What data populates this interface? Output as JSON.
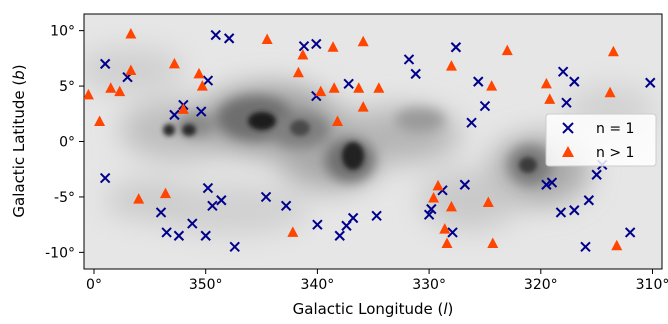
{
  "chart_data": {
    "type": "scatter",
    "xlabel": "Galactic Longitude (",
    "xlabel_italic": "l",
    "xlabel_close": ")",
    "ylabel": "Galactic Latitude (",
    "ylabel_italic": "b",
    "ylabel_close": ")",
    "xlim": [
      2,
      -311
    ],
    "ylim": [
      -11.5,
      11.5
    ],
    "x_ticks": [
      {
        "value": 0,
        "label": "0°"
      },
      {
        "value": -10,
        "label": "350°"
      },
      {
        "value": -20,
        "label": "340°"
      },
      {
        "value": -30,
        "label": "330°"
      },
      {
        "value": -40,
        "label": "320°"
      },
      {
        "value": -50,
        "label": "310°"
      }
    ],
    "y_ticks": [
      {
        "value": 10,
        "label": "10°"
      },
      {
        "value": 5,
        "label": "5°"
      },
      {
        "value": 0,
        "label": "0°"
      },
      {
        "value": -5,
        "label": "-5°"
      },
      {
        "value": -10,
        "label": "-10°"
      }
    ],
    "x_unit_per_tick": 10,
    "legend": "right",
    "grid": false,
    "background": "grayscale dust extinction map",
    "series": [
      {
        "name": "n = 1",
        "marker": "x",
        "color": "#00008b",
        "points": [
          [
            -1.0,
            7.0
          ],
          [
            -1.0,
            -3.3
          ],
          [
            -3.0,
            5.8
          ],
          [
            -6.0,
            -6.4
          ],
          [
            -6.5,
            -8.2
          ],
          [
            -7.2,
            2.4
          ],
          [
            -7.6,
            -8.5
          ],
          [
            -8.0,
            3.3
          ],
          [
            -8.8,
            -7.4
          ],
          [
            -9.6,
            2.7
          ],
          [
            -10.0,
            -8.5
          ],
          [
            -10.2,
            5.5
          ],
          [
            -10.2,
            -4.2
          ],
          [
            -10.6,
            -5.8
          ],
          [
            -10.9,
            9.6
          ],
          [
            -11.4,
            -5.3
          ],
          [
            -12.1,
            9.3
          ],
          [
            -12.6,
            -9.5
          ],
          [
            -15.4,
            -5.0
          ],
          [
            -17.2,
            -5.8
          ],
          [
            -18.8,
            8.6
          ],
          [
            -19.9,
            8.8
          ],
          [
            -19.9,
            4.1
          ],
          [
            -20.0,
            -7.5
          ],
          [
            -22.0,
            -8.5
          ],
          [
            -22.6,
            -7.6
          ],
          [
            -22.8,
            5.2
          ],
          [
            -23.2,
            -6.9
          ],
          [
            -25.3,
            -6.7
          ],
          [
            -28.2,
            7.4
          ],
          [
            -28.8,
            6.1
          ],
          [
            -30.0,
            -6.6
          ],
          [
            -30.2,
            -6.1
          ],
          [
            -31.2,
            -4.4
          ],
          [
            -32.1,
            -8.2
          ],
          [
            -32.4,
            8.5
          ],
          [
            -33.2,
            -3.9
          ],
          [
            -33.8,
            1.7
          ],
          [
            -34.4,
            5.4
          ],
          [
            -35.0,
            3.2
          ],
          [
            -40.5,
            -3.9
          ],
          [
            -41.0,
            -3.7
          ],
          [
            -41.8,
            -6.4
          ],
          [
            -42.0,
            6.3
          ],
          [
            -42.3,
            3.5
          ],
          [
            -43.0,
            5.4
          ],
          [
            -43.0,
            -6.2
          ],
          [
            -44.0,
            -9.5
          ],
          [
            -44.3,
            -5.3
          ],
          [
            -45.0,
            -3.0
          ],
          [
            -45.5,
            -2.1
          ],
          [
            -48.0,
            -8.2
          ],
          [
            -49.8,
            5.3
          ]
        ]
      },
      {
        "name": "n > 1",
        "marker": "triangle",
        "color": "#ff4500",
        "points": [
          [
            0.5,
            4.2
          ],
          [
            -0.5,
            1.8
          ],
          [
            -1.5,
            4.8
          ],
          [
            -2.3,
            4.5
          ],
          [
            -3.3,
            9.7
          ],
          [
            -3.3,
            6.4
          ],
          [
            -4.0,
            -5.2
          ],
          [
            -6.4,
            -4.7
          ],
          [
            -7.2,
            7.0
          ],
          [
            -8.0,
            2.9
          ],
          [
            -9.4,
            6.1
          ],
          [
            -9.7,
            5.0
          ],
          [
            -15.5,
            9.2
          ],
          [
            -17.8,
            -8.2
          ],
          [
            -18.3,
            6.2
          ],
          [
            -18.7,
            7.8
          ],
          [
            -20.3,
            4.5
          ],
          [
            -21.4,
            8.5
          ],
          [
            -21.5,
            4.8
          ],
          [
            -21.8,
            1.8
          ],
          [
            -23.7,
            4.8
          ],
          [
            -24.1,
            3.1
          ],
          [
            -24.1,
            9.0
          ],
          [
            -25.5,
            4.8
          ],
          [
            -30.4,
            -5.1
          ],
          [
            -30.8,
            -4.0
          ],
          [
            -31.4,
            -7.9
          ],
          [
            -31.6,
            -9.2
          ],
          [
            -32.0,
            -5.9
          ],
          [
            -32.0,
            6.8
          ],
          [
            -35.3,
            -5.5
          ],
          [
            -35.6,
            5.0
          ],
          [
            -35.7,
            -9.2
          ],
          [
            -37.0,
            8.2
          ],
          [
            -40.5,
            5.2
          ],
          [
            -40.8,
            3.8
          ],
          [
            -46.2,
            4.4
          ],
          [
            -46.5,
            8.1
          ],
          [
            -46.8,
            -9.4
          ]
        ]
      }
    ]
  }
}
